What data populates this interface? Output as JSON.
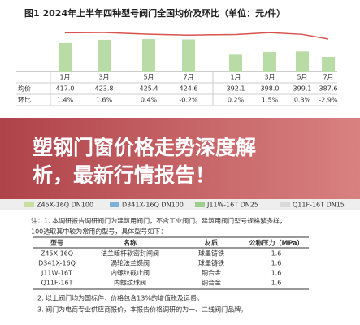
{
  "chart": {
    "title": "图1  2024年上半年四种型号阀门全国均价及环比（单位：元/件）",
    "months": [
      "1月",
      "3月",
      "5月",
      "7月",
      "1月",
      "3月",
      "5月",
      "7月"
    ],
    "row_labels": [
      "均价",
      "环比"
    ],
    "avg_price": {
      "values": [
        417.0,
        423.8,
        425.4,
        424.6,
        392.1,
        398.0,
        399.1,
        387.6
      ],
      "value_labels": [
        "417.0",
        "423.8",
        "425.4",
        "424.6",
        "392.1",
        "398.0",
        "399.1",
        "387.6"
      ],
      "color": "#b9dba6"
    },
    "mom": {
      "values": [
        1.4,
        1.6,
        0.4,
        -0.2,
        0.2,
        1.5,
        0.3,
        -2.9
      ],
      "value_labels": [
        "1.4%",
        "1.6%",
        "0.4%",
        "-0.2%",
        "0.2%",
        "1.5%",
        "0.3%",
        "-2.9%"
      ],
      "color": "#d9534f"
    }
  },
  "banner": {
    "lines": [
      "塑钢门窗价格走势深度解",
      "析，最新行情报告！"
    ]
  },
  "legend": [
    {
      "name": "Z45X-16Q DN100",
      "color": "#c9dfa0"
    },
    {
      "name": "D341X-16Q DN100",
      "color": "#7fb0d8"
    },
    {
      "name": "J11W-16T DN25",
      "color": "#9ccf8e"
    },
    {
      "name": "Q11F-16T DN15",
      "color": "#d9d9d9"
    }
  ],
  "notes": [
    "注：1. 本调研报告调研阀门为建筑用阀门，不含工业阀门。建筑用阀门型号规格繁多样，",
    "100选取其中较为常用的型号，具体型号如下："
  ],
  "table": {
    "header": [
      "型号",
      "名称",
      "材质",
      "公称压力（MPa）"
    ],
    "rows": [
      [
        "Z45X-16Q",
        "法兰暗杆软密封闸阀",
        "球墨铸铁",
        "1.6"
      ],
      [
        "D341X-16Q",
        "涡轮法兰蝶阀",
        "球墨铸铁",
        "1.6"
      ],
      [
        "J11W-16T",
        "内螺纹截止阀",
        "铜合金",
        "1.6"
      ],
      [
        "Q11F-16T",
        "内螺纹球阀",
        "铜合金",
        "1.6"
      ]
    ]
  },
  "footnotes": [
    "2. 以上阀门均为国标件，价格包含13%的增值税及运费。",
    "3. 阀门为电商专业供应商报价，本报告价格调研的为一、二线阀门品牌。"
  ]
}
